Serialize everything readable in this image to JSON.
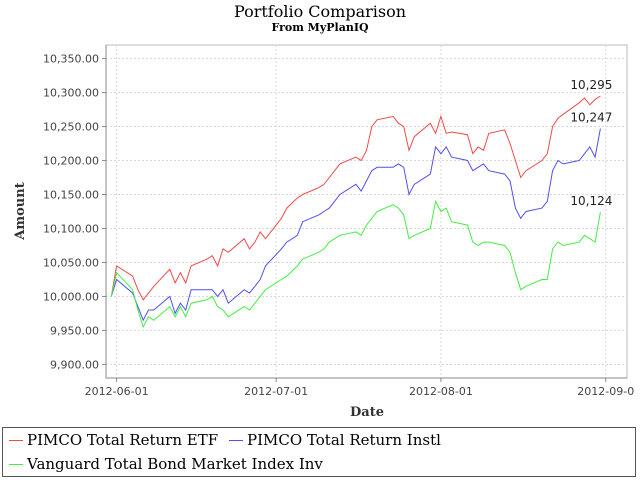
{
  "chart_data": {
    "type": "line",
    "title": "Portfolio Comparison",
    "subtitle": "From MyPlanIQ",
    "xlabel": "Date",
    "ylabel": "Amount",
    "ylim": [
      9880,
      10370
    ],
    "xlim": [
      "2012-05-30",
      "2012-09-05"
    ],
    "grid": true,
    "legend_position": "bottom",
    "x_ticks": [
      "2012-06-01",
      "2012-07-01",
      "2012-08-01",
      "2012-09-01"
    ],
    "x_tick_labels": [
      "2012-06-01",
      "2012-07-01",
      "2012-08-01",
      "2012-09-0"
    ],
    "y_ticks": [
      9900,
      9950,
      10000,
      10050,
      10100,
      10150,
      10200,
      10250,
      10300,
      10350
    ],
    "y_tick_labels": [
      "9,900.00",
      "9,950.00",
      "10,000.00",
      "10,050.00",
      "10,100.00",
      "10,150.00",
      "10,200.00",
      "10,250.00",
      "10,300.00",
      "10,350.00"
    ],
    "dates": [
      "2012-05-31",
      "2012-06-01",
      "2012-06-04",
      "2012-06-05",
      "2012-06-06",
      "2012-06-07",
      "2012-06-08",
      "2012-06-11",
      "2012-06-12",
      "2012-06-13",
      "2012-06-14",
      "2012-06-15",
      "2012-06-18",
      "2012-06-19",
      "2012-06-20",
      "2012-06-21",
      "2012-06-22",
      "2012-06-25",
      "2012-06-26",
      "2012-06-27",
      "2012-06-28",
      "2012-06-29",
      "2012-07-02",
      "2012-07-03",
      "2012-07-05",
      "2012-07-06",
      "2012-07-09",
      "2012-07-10",
      "2012-07-11",
      "2012-07-12",
      "2012-07-13",
      "2012-07-16",
      "2012-07-17",
      "2012-07-18",
      "2012-07-19",
      "2012-07-20",
      "2012-07-23",
      "2012-07-24",
      "2012-07-25",
      "2012-07-26",
      "2012-07-27",
      "2012-07-30",
      "2012-07-31",
      "2012-08-01",
      "2012-08-02",
      "2012-08-03",
      "2012-08-06",
      "2012-08-07",
      "2012-08-08",
      "2012-08-09",
      "2012-08-10",
      "2012-08-13",
      "2012-08-14",
      "2012-08-15",
      "2012-08-16",
      "2012-08-17",
      "2012-08-20",
      "2012-08-21",
      "2012-08-22",
      "2012-08-23",
      "2012-08-24",
      "2012-08-27",
      "2012-08-28",
      "2012-08-29",
      "2012-08-30",
      "2012-08-31"
    ],
    "series": [
      {
        "name": "PIMCO Total Return ETF",
        "color": "#f04a4a",
        "end_label": "10,295",
        "values": [
          10000,
          10045,
          10030,
          10010,
          9995,
          10005,
          10015,
          10040,
          10020,
          10035,
          10020,
          10045,
          10055,
          10060,
          10045,
          10070,
          10065,
          10085,
          10070,
          10080,
          10095,
          10085,
          10115,
          10130,
          10145,
          10150,
          10160,
          10165,
          10175,
          10185,
          10195,
          10205,
          10200,
          10215,
          10250,
          10260,
          10265,
          10255,
          10250,
          10215,
          10235,
          10255,
          10240,
          10265,
          10240,
          10242,
          10238,
          10210,
          10220,
          10215,
          10240,
          10245,
          10225,
          10200,
          10175,
          10185,
          10200,
          10210,
          10250,
          10262,
          10268,
          10285,
          10292,
          10282,
          10290,
          10295
        ]
      },
      {
        "name": "PIMCO Total Return Instl",
        "color": "#5050ee",
        "end_label": "10,247",
        "values": [
          10000,
          10025,
          10005,
          9985,
          9965,
          9980,
          9980,
          10000,
          9975,
          9990,
          9980,
          10010,
          10010,
          10010,
          10000,
          10010,
          9990,
          10010,
          10005,
          10015,
          10025,
          10045,
          10070,
          10080,
          10090,
          10110,
          10120,
          10125,
          10130,
          10140,
          10150,
          10165,
          10155,
          10170,
          10185,
          10190,
          10190,
          10195,
          10190,
          10150,
          10165,
          10180,
          10220,
          10210,
          10220,
          10205,
          10200,
          10185,
          10190,
          10195,
          10185,
          10180,
          10170,
          10130,
          10115,
          10125,
          10130,
          10140,
          10185,
          10200,
          10195,
          10200,
          10210,
          10220,
          10205,
          10247
        ]
      },
      {
        "name": "Vanguard Total Bond Market Index Inv",
        "color": "#44ee44",
        "end_label": "10,124",
        "values": [
          10000,
          10035,
          10010,
          9980,
          9955,
          9970,
          9965,
          9985,
          9970,
          9985,
          9970,
          9990,
          9995,
          10000,
          9985,
          9980,
          9970,
          9985,
          9980,
          9990,
          10000,
          10010,
          10025,
          10030,
          10045,
          10055,
          10065,
          10070,
          10080,
          10085,
          10090,
          10095,
          10090,
          10105,
          10115,
          10125,
          10135,
          10130,
          10120,
          10085,
          10090,
          10100,
          10140,
          10125,
          10130,
          10110,
          10105,
          10080,
          10075,
          10080,
          10080,
          10075,
          10065,
          10035,
          10010,
          10015,
          10025,
          10025,
          10070,
          10080,
          10075,
          10080,
          10090,
          10085,
          10080,
          10124
        ]
      }
    ]
  }
}
